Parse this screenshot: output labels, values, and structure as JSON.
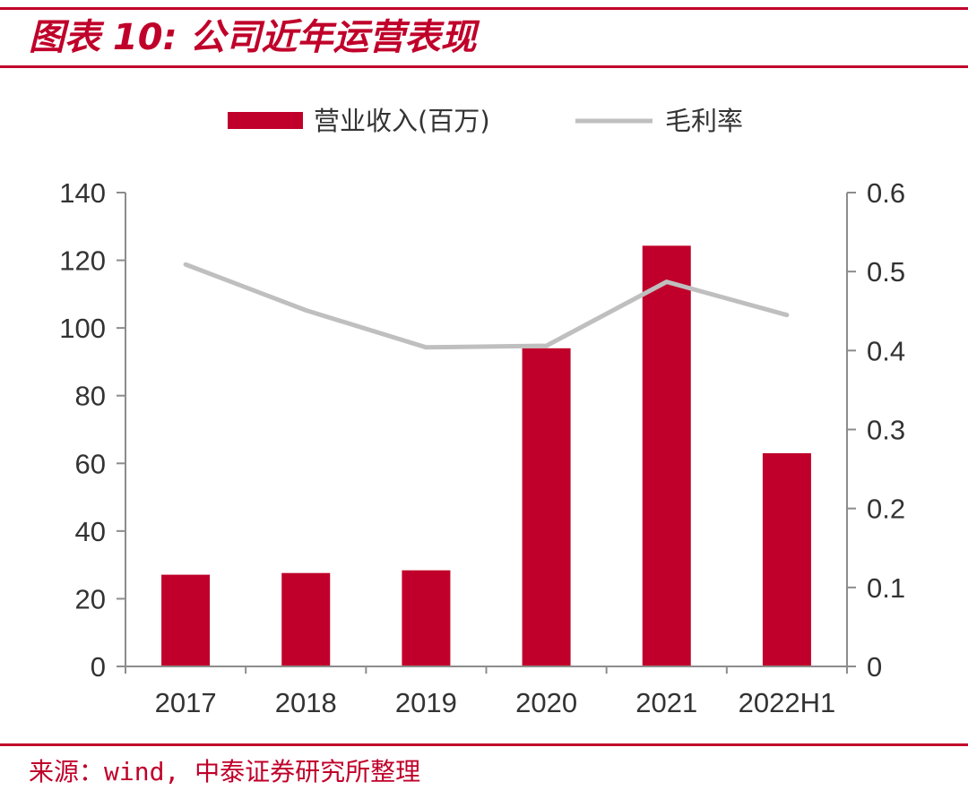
{
  "title": "图表 10: 公司近年运营表现",
  "source": "来源：wind, 中泰证券研究所整理",
  "colors": {
    "brand": "#c0002a",
    "bar": "#c0002a",
    "line": "#bfbfbf",
    "axis": "#8c8c8c"
  },
  "chart_data": {
    "type": "bar",
    "categories": [
      "2017",
      "2018",
      "2019",
      "2020",
      "2021",
      "2022H1"
    ],
    "series": [
      {
        "name": "营业收入(百万)",
        "type": "bar",
        "axis": "left",
        "values": [
          27.1,
          27.6,
          28.4,
          94.0,
          124.3,
          63.0
        ]
      },
      {
        "name": "毛利率",
        "type": "line",
        "axis": "right",
        "values": [
          0.509,
          0.451,
          0.404,
          0.406,
          0.487,
          0.445
        ]
      }
    ],
    "y_left": {
      "min": 0,
      "max": 140,
      "ticks": [
        "0",
        "20",
        "40",
        "60",
        "80",
        "100",
        "120",
        "140"
      ]
    },
    "y_right": {
      "min": 0,
      "max": 0.6,
      "ticks": [
        "0",
        "0.1",
        "0.2",
        "0.3",
        "0.4",
        "0.5",
        "0.6"
      ]
    },
    "legend_position": "top-center",
    "grid": false
  }
}
